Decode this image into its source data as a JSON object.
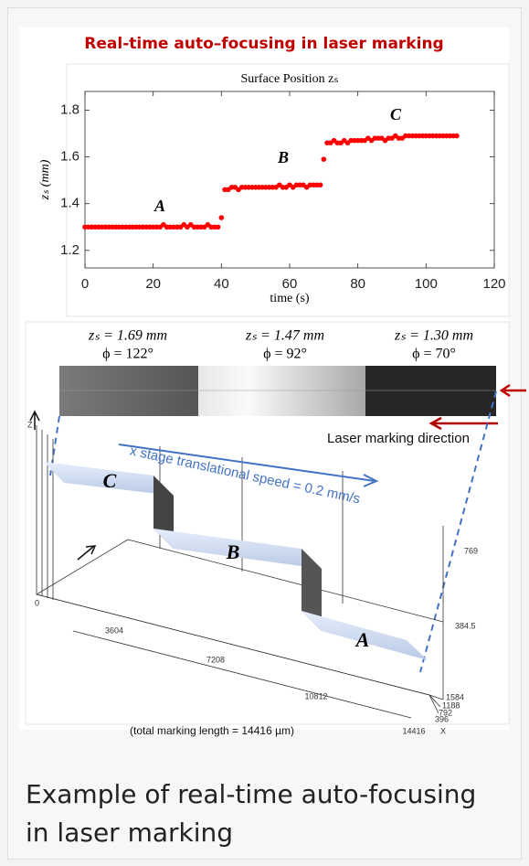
{
  "figure": {
    "title": "Real-time auto–focusing in laser marking",
    "illustration": {
      "settings": [
        {
          "z": "zₛ = 1.69 mm",
          "phi": "ϕ = 122°"
        },
        {
          "z": "zₛ = 1.47 mm",
          "phi": "ϕ = 92°"
        },
        {
          "z": "zₛ = 1.30 mm",
          "phi": "ϕ = 70°"
        }
      ],
      "direction": "Laser marking direction",
      "speed": "x stage translational speed = 0.2 mm/s",
      "regions": [
        "C",
        "B",
        "A"
      ],
      "axis_z": "Z",
      "axis_x": "X",
      "x_ticks": [
        "3604",
        "7208",
        "10812",
        "14416"
      ],
      "z_ticks": [
        "0",
        "384.5",
        "769"
      ],
      "y_ticks": [
        "1584",
        "1188",
        "792",
        "396"
      ],
      "note": "(total marking length = 14416 µm)"
    }
  },
  "chart_data": {
    "type": "scatter",
    "title": "Surface Position zₛ",
    "xlabel": "time (s)",
    "ylabel": "zₛ (mm)",
    "color": "#ff0000",
    "annotations": [
      "A",
      "B",
      "C"
    ],
    "x": [
      0,
      1,
      2,
      3,
      4,
      5,
      6,
      7,
      8,
      9,
      10,
      11,
      12,
      13,
      14,
      15,
      16,
      17,
      18,
      19,
      20,
      21,
      22,
      23,
      24,
      25,
      26,
      27,
      28,
      29,
      30,
      31,
      32,
      33,
      34,
      35,
      36,
      37,
      38,
      39,
      40,
      41,
      42,
      43,
      44,
      45,
      46,
      47,
      48,
      49,
      50,
      51,
      52,
      53,
      54,
      55,
      56,
      57,
      58,
      59,
      60,
      61,
      62,
      63,
      64,
      65,
      66,
      67,
      68,
      69,
      70,
      71,
      72,
      73,
      74,
      75,
      76,
      77,
      78,
      79,
      80,
      81,
      82,
      83,
      84,
      85,
      86,
      87,
      88,
      89,
      90,
      91,
      92,
      93,
      94,
      95,
      96,
      97,
      98,
      99,
      100,
      101,
      102,
      103,
      104,
      105,
      106,
      107,
      108,
      109
    ],
    "values": [
      1.3,
      1.3,
      1.3,
      1.3,
      1.3,
      1.3,
      1.3,
      1.3,
      1.3,
      1.3,
      1.3,
      1.3,
      1.3,
      1.3,
      1.3,
      1.3,
      1.3,
      1.3,
      1.3,
      1.3,
      1.3,
      1.3,
      1.3,
      1.31,
      1.3,
      1.3,
      1.3,
      1.3,
      1.3,
      1.31,
      1.3,
      1.31,
      1.3,
      1.3,
      1.3,
      1.3,
      1.31,
      1.3,
      1.3,
      1.3,
      1.34,
      1.46,
      1.46,
      1.47,
      1.47,
      1.46,
      1.47,
      1.47,
      1.47,
      1.47,
      1.47,
      1.47,
      1.47,
      1.47,
      1.47,
      1.47,
      1.47,
      1.48,
      1.47,
      1.47,
      1.48,
      1.47,
      1.48,
      1.48,
      1.48,
      1.47,
      1.48,
      1.48,
      1.48,
      1.48,
      1.59,
      1.66,
      1.66,
      1.67,
      1.66,
      1.66,
      1.67,
      1.66,
      1.67,
      1.67,
      1.67,
      1.67,
      1.67,
      1.68,
      1.67,
      1.68,
      1.68,
      1.68,
      1.67,
      1.68,
      1.68,
      1.69,
      1.68,
      1.68,
      1.69,
      1.69,
      1.69,
      1.69,
      1.69,
      1.69,
      1.69,
      1.69,
      1.69,
      1.69,
      1.69,
      1.69,
      1.69,
      1.69,
      1.69,
      1.69
    ],
    "xlim": [
      0,
      120
    ],
    "ylim": [
      1.125,
      1.88
    ],
    "xticks": [
      0,
      20,
      40,
      60,
      80,
      100,
      120
    ],
    "yticks": [
      1.2,
      1.4,
      1.6,
      1.8
    ]
  },
  "caption": "Example of real-time auto-focusing in laser marking"
}
